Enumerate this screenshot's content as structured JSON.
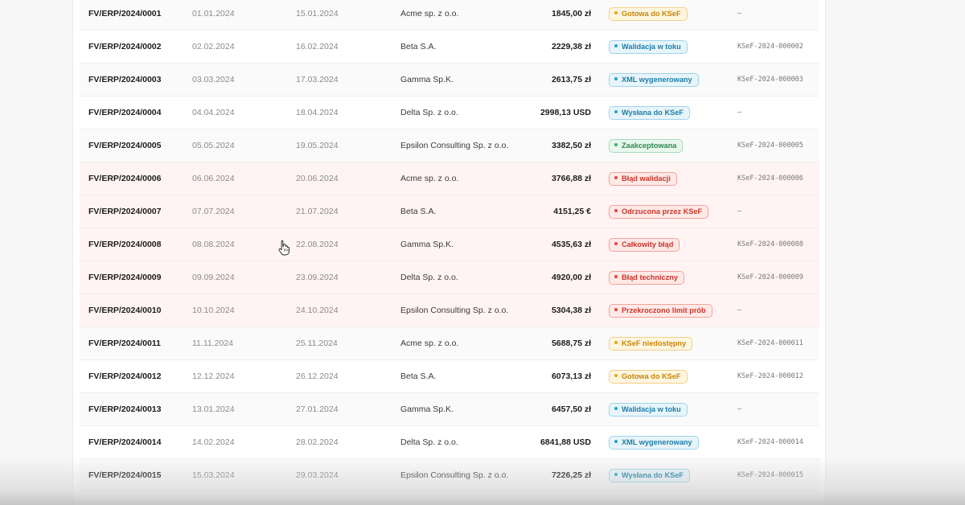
{
  "invoices": [
    {
      "number": "FV/ERP/2024/0001",
      "issue_date": "01.01.2024",
      "due_date": "15.01.2024",
      "customer": "Acme sp. z o.o.",
      "amount": "1845,00 zł",
      "status": "Gotowa do KSeF",
      "status_color": "orange",
      "ksef_ref": "–"
    },
    {
      "number": "FV/ERP/2024/0002",
      "issue_date": "02.02.2024",
      "due_date": "16.02.2024",
      "customer": "Beta S.A.",
      "amount": "2229,38 zł",
      "status": "Walidacja w toku",
      "status_color": "blue",
      "ksef_ref": "KSeF-2024-000002"
    },
    {
      "number": "FV/ERP/2024/0003",
      "issue_date": "03.03.2024",
      "due_date": "17.03.2024",
      "customer": "Gamma Sp.K.",
      "amount": "2613,75 zł",
      "status": "XML wygenerowany",
      "status_color": "blue",
      "ksef_ref": "KSeF-2024-000003"
    },
    {
      "number": "FV/ERP/2024/0004",
      "issue_date": "04.04.2024",
      "due_date": "18.04.2024",
      "customer": "Delta Sp. z o.o.",
      "amount": "2998,13 USD",
      "status": "Wysłana do KSeF",
      "status_color": "blue",
      "ksef_ref": "–"
    },
    {
      "number": "FV/ERP/2024/0005",
      "issue_date": "05.05.2024",
      "due_date": "19.05.2024",
      "customer": "Epsilon Consulting Sp. z o.o.",
      "amount": "3382,50 zł",
      "status": "Zaakceptowana",
      "status_color": "green",
      "ksef_ref": "KSeF-2024-000005"
    },
    {
      "number": "FV/ERP/2024/0006",
      "issue_date": "06.06.2024",
      "due_date": "20.06.2024",
      "customer": "Acme sp. z o.o.",
      "amount": "3766,88 zł",
      "status": "Błąd walidacji",
      "status_color": "red",
      "ksef_ref": "KSeF-2024-000006"
    },
    {
      "number": "FV/ERP/2024/0007",
      "issue_date": "07.07.2024",
      "due_date": "21.07.2024",
      "customer": "Beta S.A.",
      "amount": "4151,25 €",
      "status": "Odrzucona przez KSeF",
      "status_color": "red",
      "ksef_ref": "–"
    },
    {
      "number": "FV/ERP/2024/0008",
      "issue_date": "08.08.2024",
      "due_date": "22.08.2024",
      "customer": "Gamma Sp.K.",
      "amount": "4535,63 zł",
      "status": "Całkowity błąd",
      "status_color": "red",
      "ksef_ref": "KSeF-2024-000008"
    },
    {
      "number": "FV/ERP/2024/0009",
      "issue_date": "09.09.2024",
      "due_date": "23.09.2024",
      "customer": "Delta Sp. z o.o.",
      "amount": "4920,00 zł",
      "status": "Błąd techniczny",
      "status_color": "red",
      "ksef_ref": "KSeF-2024-000009"
    },
    {
      "number": "FV/ERP/2024/0010",
      "issue_date": "10.10.2024",
      "due_date": "24.10.2024",
      "customer": "Epsilon Consulting Sp. z o.o.",
      "amount": "5304,38 zł",
      "status": "Przekroczono limit prób",
      "status_color": "red",
      "ksef_ref": "–"
    },
    {
      "number": "FV/ERP/2024/0011",
      "issue_date": "11.11.2024",
      "due_date": "25.11.2024",
      "customer": "Acme sp. z o.o.",
      "amount": "5688,75 zł",
      "status": "KSeF niedostępny",
      "status_color": "orange",
      "ksef_ref": "KSeF-2024-000011"
    },
    {
      "number": "FV/ERP/2024/0012",
      "issue_date": "12.12.2024",
      "due_date": "26.12.2024",
      "customer": "Beta S.A.",
      "amount": "6073,13 zł",
      "status": "Gotowa do KSeF",
      "status_color": "orange",
      "ksef_ref": "KSeF-2024-000012"
    },
    {
      "number": "FV/ERP/2024/0013",
      "issue_date": "13.01.2024",
      "due_date": "27.01.2024",
      "customer": "Gamma Sp.K.",
      "amount": "6457,50 zł",
      "status": "Walidacja w toku",
      "status_color": "blue",
      "ksef_ref": "–"
    },
    {
      "number": "FV/ERP/2024/0014",
      "issue_date": "14.02.2024",
      "due_date": "28.02.2024",
      "customer": "Delta Sp. z o.o.",
      "amount": "6841,88 USD",
      "status": "XML wygenerowany",
      "status_color": "blue",
      "ksef_ref": "KSeF-2024-000014"
    },
    {
      "number": "FV/ERP/2024/0015",
      "issue_date": "15.03.2024",
      "due_date": "29.03.2024",
      "customer": "Epsilon Consulting Sp. z o.o.",
      "amount": "7226,25 zł",
      "status": "Wysłana do KSeF",
      "status_color": "blue",
      "ksef_ref": "KSeF-2024-000015"
    }
  ],
  "cursor_icon": "hand-pointer-icon"
}
